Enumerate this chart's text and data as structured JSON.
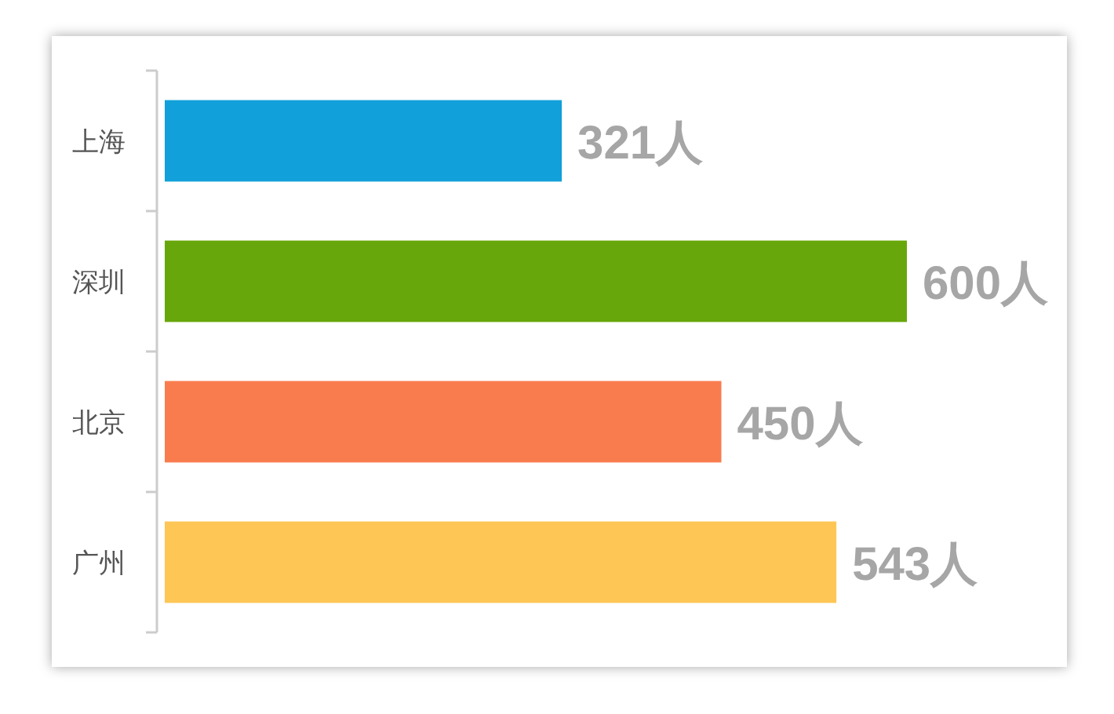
{
  "chart_data": {
    "type": "bar",
    "orientation": "horizontal",
    "tick_labels": "y",
    "categories": [
      "上海",
      "深圳",
      "北京",
      "广州"
    ],
    "values": [
      321,
      600,
      450,
      543
    ],
    "colors": [
      "#11a0d9",
      "#68a70b",
      "#f97c4f",
      "#fec655"
    ],
    "value_labels": [
      "321人",
      "600人",
      "450人",
      "543人"
    ]
  }
}
